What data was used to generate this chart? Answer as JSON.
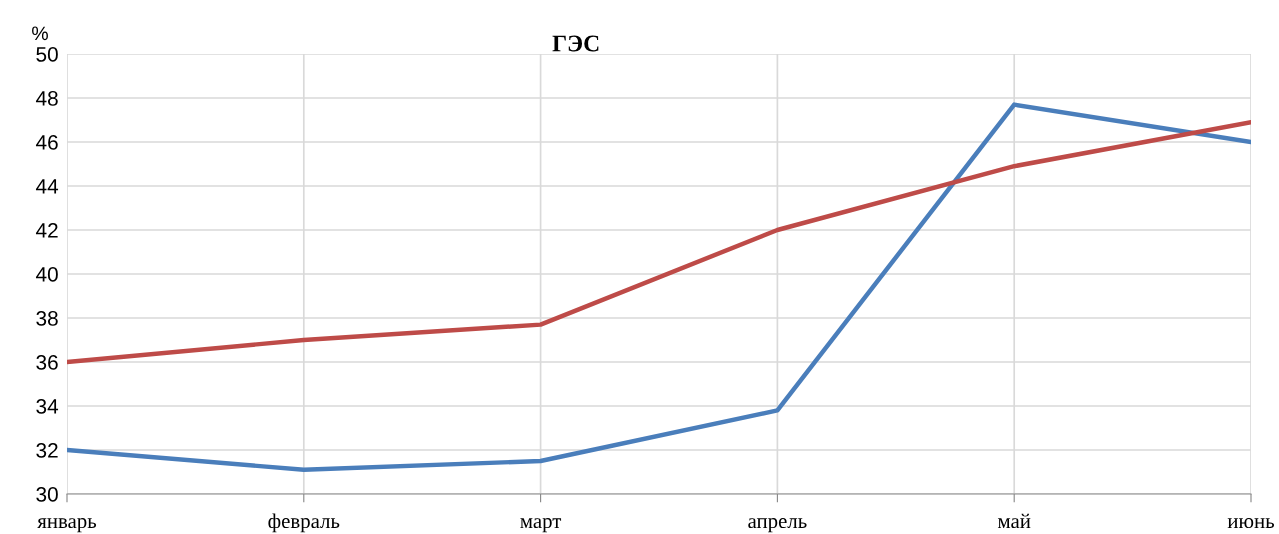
{
  "chart_data": {
    "type": "line",
    "title": "ГЭС",
    "ylabel": "%",
    "categories": [
      "январь",
      "февраль",
      "март",
      "апрель",
      "май",
      "июнь"
    ],
    "series": [
      {
        "color": "#4a7ebb",
        "values": [
          32.0,
          31.1,
          31.5,
          33.8,
          47.7,
          46.0
        ]
      },
      {
        "color": "#be4b48",
        "values": [
          36.0,
          37.0,
          37.7,
          42.0,
          44.9,
          46.9
        ]
      }
    ],
    "ylim": [
      30,
      50
    ],
    "yticks": [
      30,
      32,
      34,
      36,
      38,
      40,
      42,
      44,
      46,
      48,
      50
    ],
    "grid": true,
    "marker": "none",
    "line_style": "solid"
  }
}
